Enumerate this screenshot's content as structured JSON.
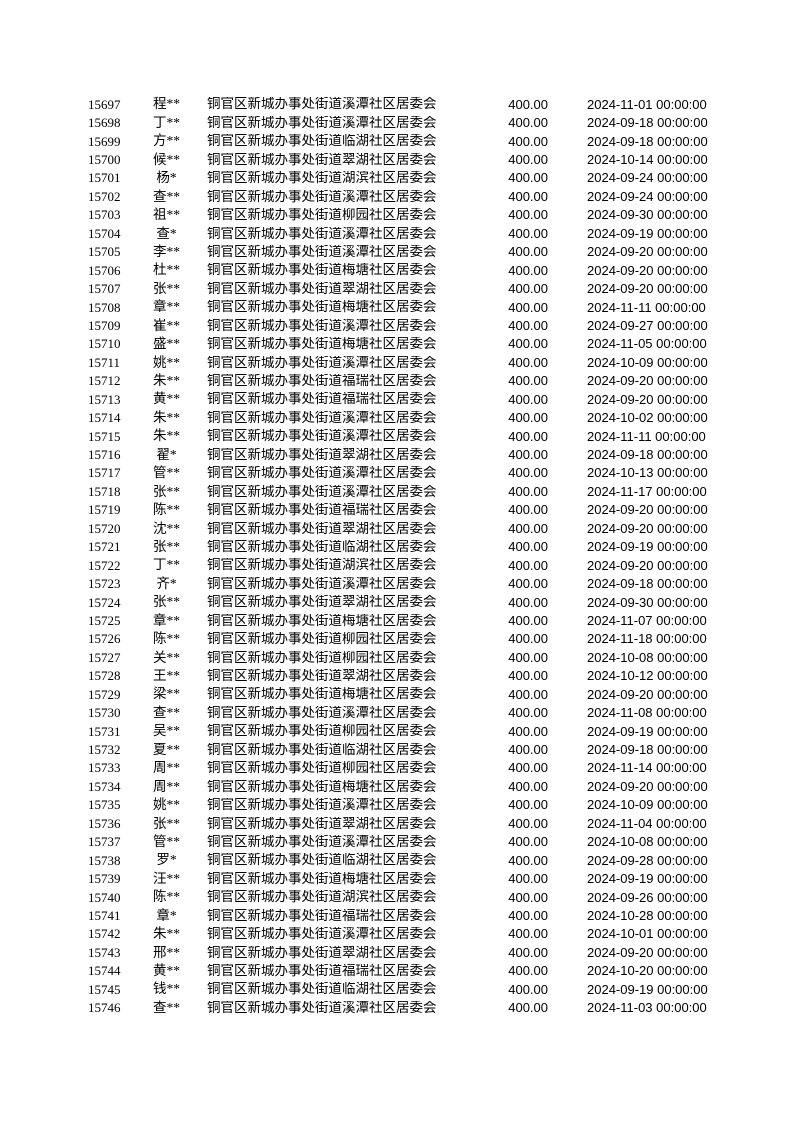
{
  "page": {
    "background_color": "#ffffff",
    "text_color": "#000000",
    "kind": "document-table-page"
  },
  "table": {
    "columns": [
      "record_id",
      "masked_name",
      "organization",
      "amount",
      "datetime"
    ],
    "shared_amount": "400.00",
    "organization_prefix": "铜官区新城办事处街道",
    "organization_suffix": "社区居委会",
    "rows": [
      {
        "id": "15697",
        "name": "程**",
        "org": "铜官区新城办事处街道溪潭社区居委会",
        "amount": "400.00",
        "datetime": "2024-11-01 00:00:00"
      },
      {
        "id": "15698",
        "name": "丁**",
        "org": "铜官区新城办事处街道溪潭社区居委会",
        "amount": "400.00",
        "datetime": "2024-09-18 00:00:00"
      },
      {
        "id": "15699",
        "name": "方**",
        "org": "铜官区新城办事处街道临湖社区居委会",
        "amount": "400.00",
        "datetime": "2024-09-18 00:00:00"
      },
      {
        "id": "15700",
        "name": "候**",
        "org": "铜官区新城办事处街道翠湖社区居委会",
        "amount": "400.00",
        "datetime": "2024-10-14 00:00:00"
      },
      {
        "id": "15701",
        "name": "杨*",
        "org": "铜官区新城办事处街道湖滨社区居委会",
        "amount": "400.00",
        "datetime": "2024-09-24 00:00:00"
      },
      {
        "id": "15702",
        "name": "查**",
        "org": "铜官区新城办事处街道溪潭社区居委会",
        "amount": "400.00",
        "datetime": "2024-09-24 00:00:00"
      },
      {
        "id": "15703",
        "name": "祖**",
        "org": "铜官区新城办事处街道柳园社区居委会",
        "amount": "400.00",
        "datetime": "2024-09-30 00:00:00"
      },
      {
        "id": "15704",
        "name": "查*",
        "org": "铜官区新城办事处街道溪潭社区居委会",
        "amount": "400.00",
        "datetime": "2024-09-19 00:00:00"
      },
      {
        "id": "15705",
        "name": "李**",
        "org": "铜官区新城办事处街道溪潭社区居委会",
        "amount": "400.00",
        "datetime": "2024-09-20 00:00:00"
      },
      {
        "id": "15706",
        "name": "杜**",
        "org": "铜官区新城办事处街道梅塘社区居委会",
        "amount": "400.00",
        "datetime": "2024-09-20 00:00:00"
      },
      {
        "id": "15707",
        "name": "张**",
        "org": "铜官区新城办事处街道翠湖社区居委会",
        "amount": "400.00",
        "datetime": "2024-09-20 00:00:00"
      },
      {
        "id": "15708",
        "name": "章**",
        "org": "铜官区新城办事处街道梅塘社区居委会",
        "amount": "400.00",
        "datetime": "2024-11-11 00:00:00"
      },
      {
        "id": "15709",
        "name": "崔**",
        "org": "铜官区新城办事处街道溪潭社区居委会",
        "amount": "400.00",
        "datetime": "2024-09-27 00:00:00"
      },
      {
        "id": "15710",
        "name": "盛**",
        "org": "铜官区新城办事处街道梅塘社区居委会",
        "amount": "400.00",
        "datetime": "2024-11-05 00:00:00"
      },
      {
        "id": "15711",
        "name": "姚**",
        "org": "铜官区新城办事处街道溪潭社区居委会",
        "amount": "400.00",
        "datetime": "2024-10-09 00:00:00"
      },
      {
        "id": "15712",
        "name": "朱**",
        "org": "铜官区新城办事处街道福瑞社区居委会",
        "amount": "400.00",
        "datetime": "2024-09-20 00:00:00"
      },
      {
        "id": "15713",
        "name": "黄**",
        "org": "铜官区新城办事处街道福瑞社区居委会",
        "amount": "400.00",
        "datetime": "2024-09-20 00:00:00"
      },
      {
        "id": "15714",
        "name": "朱**",
        "org": "铜官区新城办事处街道溪潭社区居委会",
        "amount": "400.00",
        "datetime": "2024-10-02 00:00:00"
      },
      {
        "id": "15715",
        "name": "朱**",
        "org": "铜官区新城办事处街道溪潭社区居委会",
        "amount": "400.00",
        "datetime": "2024-11-11 00:00:00"
      },
      {
        "id": "15716",
        "name": "翟*",
        "org": "铜官区新城办事处街道翠湖社区居委会",
        "amount": "400.00",
        "datetime": "2024-09-18 00:00:00"
      },
      {
        "id": "15717",
        "name": "管**",
        "org": "铜官区新城办事处街道溪潭社区居委会",
        "amount": "400.00",
        "datetime": "2024-10-13 00:00:00"
      },
      {
        "id": "15718",
        "name": "张**",
        "org": "铜官区新城办事处街道溪潭社区居委会",
        "amount": "400.00",
        "datetime": "2024-11-17 00:00:00"
      },
      {
        "id": "15719",
        "name": "陈**",
        "org": "铜官区新城办事处街道福瑞社区居委会",
        "amount": "400.00",
        "datetime": "2024-09-20 00:00:00"
      },
      {
        "id": "15720",
        "name": "沈**",
        "org": "铜官区新城办事处街道翠湖社区居委会",
        "amount": "400.00",
        "datetime": "2024-09-20 00:00:00"
      },
      {
        "id": "15721",
        "name": "张**",
        "org": "铜官区新城办事处街道临湖社区居委会",
        "amount": "400.00",
        "datetime": "2024-09-19 00:00:00"
      },
      {
        "id": "15722",
        "name": "丁**",
        "org": "铜官区新城办事处街道湖滨社区居委会",
        "amount": "400.00",
        "datetime": "2024-09-20 00:00:00"
      },
      {
        "id": "15723",
        "name": "齐*",
        "org": "铜官区新城办事处街道溪潭社区居委会",
        "amount": "400.00",
        "datetime": "2024-09-18 00:00:00"
      },
      {
        "id": "15724",
        "name": "张**",
        "org": "铜官区新城办事处街道翠湖社区居委会",
        "amount": "400.00",
        "datetime": "2024-09-30 00:00:00"
      },
      {
        "id": "15725",
        "name": "章**",
        "org": "铜官区新城办事处街道梅塘社区居委会",
        "amount": "400.00",
        "datetime": "2024-11-07 00:00:00"
      },
      {
        "id": "15726",
        "name": "陈**",
        "org": "铜官区新城办事处街道柳园社区居委会",
        "amount": "400.00",
        "datetime": "2024-11-18 00:00:00"
      },
      {
        "id": "15727",
        "name": "关**",
        "org": "铜官区新城办事处街道柳园社区居委会",
        "amount": "400.00",
        "datetime": "2024-10-08 00:00:00"
      },
      {
        "id": "15728",
        "name": "王**",
        "org": "铜官区新城办事处街道翠湖社区居委会",
        "amount": "400.00",
        "datetime": "2024-10-12 00:00:00"
      },
      {
        "id": "15729",
        "name": "梁**",
        "org": "铜官区新城办事处街道梅塘社区居委会",
        "amount": "400.00",
        "datetime": "2024-09-20 00:00:00"
      },
      {
        "id": "15730",
        "name": "查**",
        "org": "铜官区新城办事处街道溪潭社区居委会",
        "amount": "400.00",
        "datetime": "2024-11-08 00:00:00"
      },
      {
        "id": "15731",
        "name": "吴**",
        "org": "铜官区新城办事处街道柳园社区居委会",
        "amount": "400.00",
        "datetime": "2024-09-19 00:00:00"
      },
      {
        "id": "15732",
        "name": "夏**",
        "org": "铜官区新城办事处街道临湖社区居委会",
        "amount": "400.00",
        "datetime": "2024-09-18 00:00:00"
      },
      {
        "id": "15733",
        "name": "周**",
        "org": "铜官区新城办事处街道柳园社区居委会",
        "amount": "400.00",
        "datetime": "2024-11-14 00:00:00"
      },
      {
        "id": "15734",
        "name": "周**",
        "org": "铜官区新城办事处街道梅塘社区居委会",
        "amount": "400.00",
        "datetime": "2024-09-20 00:00:00"
      },
      {
        "id": "15735",
        "name": "姚**",
        "org": "铜官区新城办事处街道溪潭社区居委会",
        "amount": "400.00",
        "datetime": "2024-10-09 00:00:00"
      },
      {
        "id": "15736",
        "name": "张**",
        "org": "铜官区新城办事处街道翠湖社区居委会",
        "amount": "400.00",
        "datetime": "2024-11-04 00:00:00"
      },
      {
        "id": "15737",
        "name": "管**",
        "org": "铜官区新城办事处街道溪潭社区居委会",
        "amount": "400.00",
        "datetime": "2024-10-08 00:00:00"
      },
      {
        "id": "15738",
        "name": "罗*",
        "org": "铜官区新城办事处街道临湖社区居委会",
        "amount": "400.00",
        "datetime": "2024-09-28 00:00:00"
      },
      {
        "id": "15739",
        "name": "汪**",
        "org": "铜官区新城办事处街道梅塘社区居委会",
        "amount": "400.00",
        "datetime": "2024-09-19 00:00:00"
      },
      {
        "id": "15740",
        "name": "陈**",
        "org": "铜官区新城办事处街道湖滨社区居委会",
        "amount": "400.00",
        "datetime": "2024-09-26 00:00:00"
      },
      {
        "id": "15741",
        "name": "章*",
        "org": "铜官区新城办事处街道福瑞社区居委会",
        "amount": "400.00",
        "datetime": "2024-10-28 00:00:00"
      },
      {
        "id": "15742",
        "name": "朱**",
        "org": "铜官区新城办事处街道溪潭社区居委会",
        "amount": "400.00",
        "datetime": "2024-10-01 00:00:00"
      },
      {
        "id": "15743",
        "name": "邢**",
        "org": "铜官区新城办事处街道翠湖社区居委会",
        "amount": "400.00",
        "datetime": "2024-09-20 00:00:00"
      },
      {
        "id": "15744",
        "name": "黄**",
        "org": "铜官区新城办事处街道福瑞社区居委会",
        "amount": "400.00",
        "datetime": "2024-10-20 00:00:00"
      },
      {
        "id": "15745",
        "name": "钱**",
        "org": "铜官区新城办事处街道临湖社区居委会",
        "amount": "400.00",
        "datetime": "2024-09-19 00:00:00"
      },
      {
        "id": "15746",
        "name": "查**",
        "org": "铜官区新城办事处街道溪潭社区居委会",
        "amount": "400.00",
        "datetime": "2024-11-03 00:00:00"
      }
    ]
  }
}
